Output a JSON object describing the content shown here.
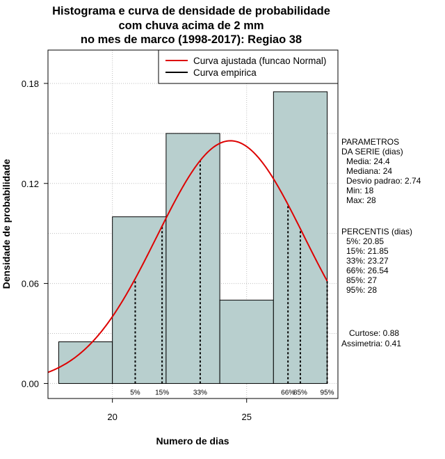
{
  "chart_data": {
    "type": "bar",
    "title_lines": [
      "Histograma e curva de densidade de probabilidade",
      "com chuva acima de 2 mm",
      "no mes de marco (1998-2017): Regiao 38"
    ],
    "xlabel": "Numero de dias",
    "ylabel": "Densidade de probabilidade",
    "xlim": [
      17.6,
      28.4
    ],
    "ylim": [
      -0.009,
      0.2
    ],
    "x_ticks": [
      20,
      25
    ],
    "y_ticks": [
      0.0,
      0.06,
      0.12,
      0.18
    ],
    "x_tick_labels": [
      "20",
      "25"
    ],
    "y_tick_labels": [
      "0.00",
      "0.06",
      "0.12",
      "0.18"
    ],
    "bins": [
      {
        "start": 18,
        "end": 20,
        "density": 0.025
      },
      {
        "start": 20,
        "end": 22,
        "density": 0.1
      },
      {
        "start": 22,
        "end": 24,
        "density": 0.15
      },
      {
        "start": 24,
        "end": 26,
        "density": 0.05
      },
      {
        "start": 26,
        "end": 28,
        "density": 0.175
      }
    ],
    "normal_fit": {
      "mean": 24.4,
      "sd": 2.74
    },
    "bar_color": "#b8cfce",
    "curve_color": "#dd0000",
    "grid": true,
    "legend": {
      "position": "top-right",
      "entries": [
        {
          "label": "Curva ajustada (funcao Normal)",
          "color": "#dd0000"
        },
        {
          "label": "Curva empirica",
          "color": "#000000"
        }
      ]
    },
    "percentiles": [
      {
        "label": "5%",
        "value": 20.85
      },
      {
        "label": "15%",
        "value": 21.85
      },
      {
        "label": "33%",
        "value": 23.27
      },
      {
        "label": "66%",
        "value": 26.54
      },
      {
        "label": "85%",
        "value": 27
      },
      {
        "label": "95%",
        "value": 28
      }
    ]
  },
  "side_panel": {
    "params_lines": [
      "PARAMETROS",
      "DA SERIE (dias)",
      "Media: 24.4",
      "Mediana: 24",
      "Desvio padrao: 2.74",
      "Min: 18",
      "Max: 28"
    ],
    "percentis_lines": [
      "PERCENTIS (dias)",
      "5%: 20.85",
      "15%: 21.85",
      "33%: 23.27",
      "66%: 26.54",
      "85%: 27",
      "95%: 28"
    ],
    "stats_lines": [
      "Curtose: 0.88",
      "Assimetria: 0.41"
    ]
  }
}
